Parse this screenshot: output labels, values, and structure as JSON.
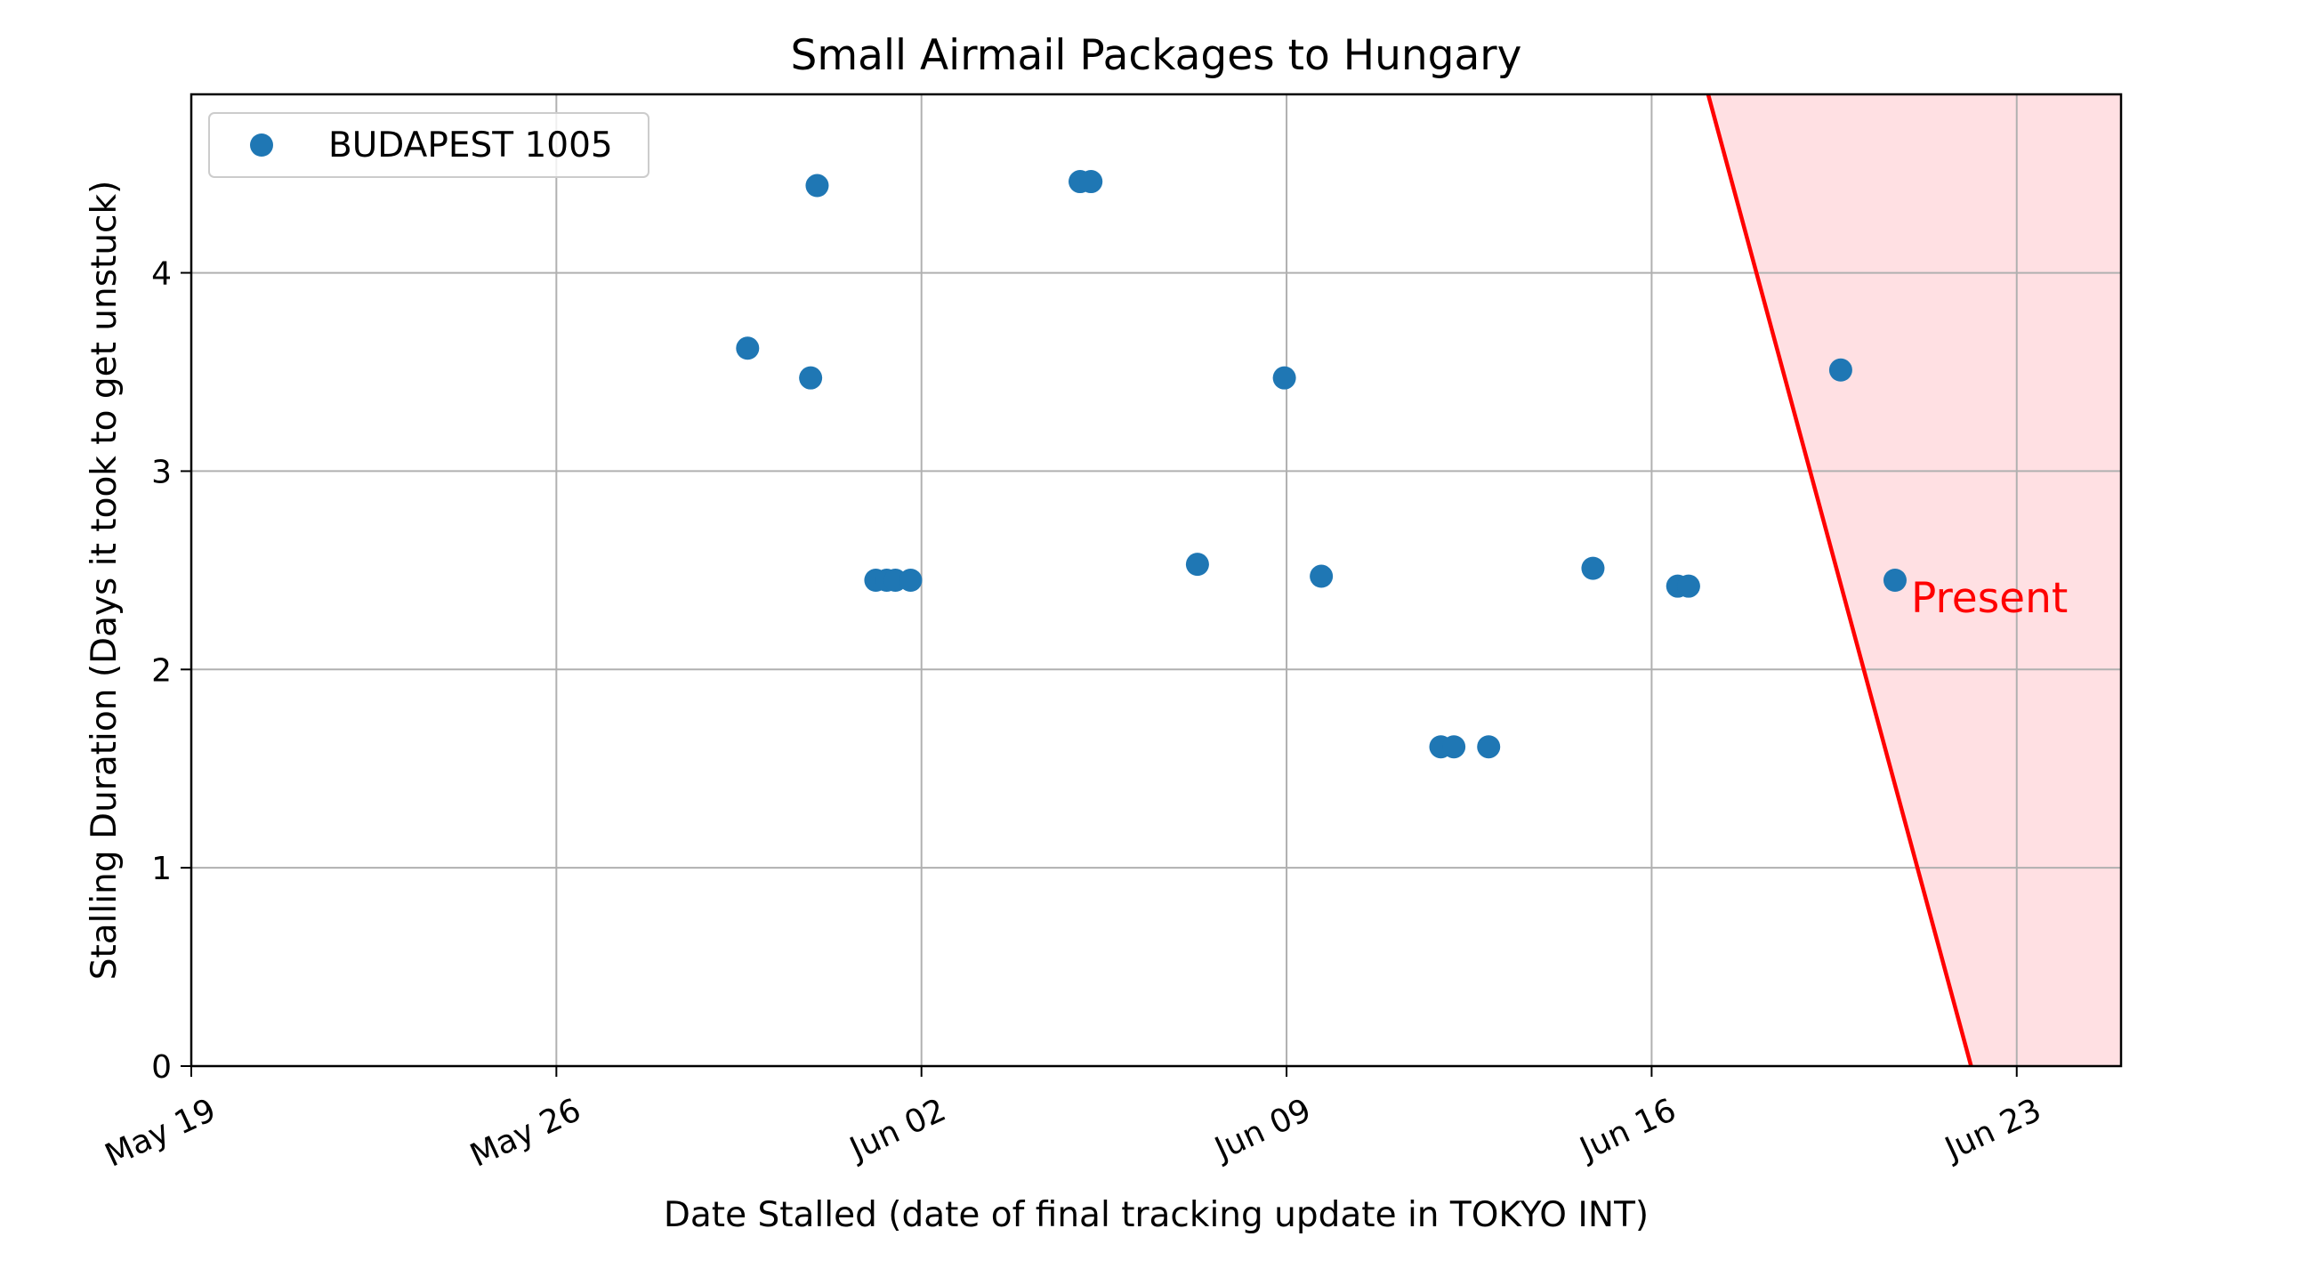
{
  "chart_data": {
    "type": "scatter",
    "title": "Small Airmail Packages to Hungary",
    "xlabel": "Date Stalled (date of final tracking update in TOKYO INT)",
    "ylabel": "Stalling Duration (Days it took to get unstuck)",
    "x_axis_type": "date",
    "xlim": [
      "2024-05-19T00:00",
      "2024-06-25T00:00"
    ],
    "ylim": [
      0,
      4.9
    ],
    "x_ticks": [
      {
        "date": "2024-05-19",
        "label": "May 19"
      },
      {
        "date": "2024-05-26",
        "label": "May 26"
      },
      {
        "date": "2024-06-02",
        "label": "Jun 02"
      },
      {
        "date": "2024-06-09",
        "label": "Jun 09"
      },
      {
        "date": "2024-06-16",
        "label": "Jun 16"
      },
      {
        "date": "2024-06-23",
        "label": "Jun 23"
      }
    ],
    "y_ticks": [
      0,
      1,
      2,
      3,
      4
    ],
    "grid": true,
    "legend_position": "upper-left",
    "series": [
      {
        "name": "BUDAPEST 1005",
        "color": "#1f77b4",
        "points": [
          {
            "x": "2024-05-29T16:00",
            "y": 3.62
          },
          {
            "x": "2024-05-30T21:00",
            "y": 3.47
          },
          {
            "x": "2024-05-31T00:00",
            "y": 4.44
          },
          {
            "x": "2024-06-01T03:00",
            "y": 2.45
          },
          {
            "x": "2024-06-01T08:00",
            "y": 2.45
          },
          {
            "x": "2024-06-01T12:00",
            "y": 2.45
          },
          {
            "x": "2024-06-01T19:00",
            "y": 2.45
          },
          {
            "x": "2024-06-05T01:00",
            "y": 4.46
          },
          {
            "x": "2024-06-05T06:00",
            "y": 4.46
          },
          {
            "x": "2024-06-07T07:00",
            "y": 2.53
          },
          {
            "x": "2024-06-08T23:00",
            "y": 3.47
          },
          {
            "x": "2024-06-09T16:00",
            "y": 2.47
          },
          {
            "x": "2024-06-11T23:00",
            "y": 1.61
          },
          {
            "x": "2024-06-12T05:00",
            "y": 1.61
          },
          {
            "x": "2024-06-12T21:00",
            "y": 1.61
          },
          {
            "x": "2024-06-14T21:00",
            "y": 2.51
          },
          {
            "x": "2024-06-16T12:00",
            "y": 2.42
          },
          {
            "x": "2024-06-16T17:00",
            "y": 2.42
          },
          {
            "x": "2024-06-19T15:00",
            "y": 3.51
          },
          {
            "x": "2024-06-20T16:00",
            "y": 2.45
          }
        ]
      }
    ],
    "present_boundary": {
      "label": "Present",
      "color": "#ff0000",
      "shade_color": "#ffe0e3",
      "line": [
        {
          "x": "2024-06-17T02:00",
          "y": 4.9
        },
        {
          "x": "2024-06-22T03:00",
          "y": 0
        }
      ]
    }
  }
}
